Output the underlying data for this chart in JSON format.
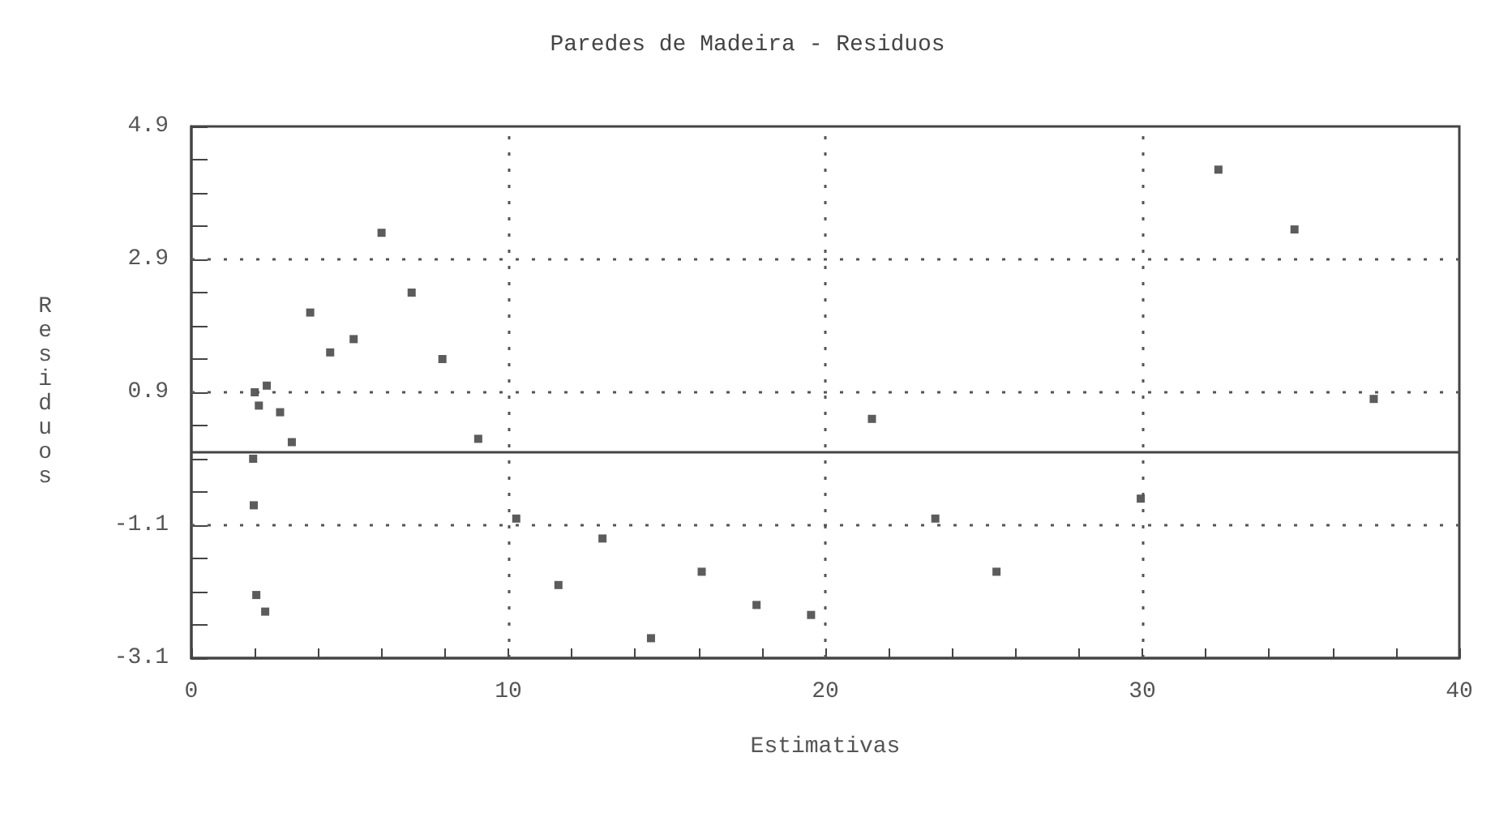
{
  "chart_data": {
    "type": "scatter",
    "title": "Paredes de Madeira - Residuos",
    "xlabel": "Estimativas",
    "ylabel": "Residuos",
    "x": [
      6.0,
      6.95,
      3.75,
      4.38,
      5.12,
      7.92,
      2.0,
      2.38,
      2.13,
      2.8,
      3.17,
      9.05,
      1.95,
      1.97,
      2.05,
      2.33,
      10.25,
      12.97,
      11.58,
      14.5,
      16.1,
      17.83,
      19.55,
      21.47,
      23.47,
      25.4,
      32.4,
      34.8,
      37.3,
      29.95
    ],
    "values": [
      3.3,
      2.4,
      2.1,
      1.5,
      1.7,
      1.4,
      0.9,
      1.0,
      0.7,
      0.6,
      0.15,
      0.2,
      -0.1,
      -0.8,
      -2.15,
      -2.4,
      -1.0,
      -1.3,
      -2.0,
      -2.8,
      -1.8,
      -2.3,
      -2.45,
      0.5,
      -1.0,
      -1.8,
      4.25,
      3.35,
      0.8,
      -0.7
    ],
    "color": "#333333",
    "marker": "square",
    "xlim": [
      0,
      40
    ],
    "xticks": [
      0,
      {
        "value": 2,
        "label": null
      },
      {
        "value": 4,
        "label": null
      },
      {
        "value": 6,
        "label": null
      },
      {
        "value": 8,
        "label": null
      },
      10,
      {
        "value": 12,
        "label": null
      },
      {
        "value": 14,
        "label": null
      },
      {
        "value": 16,
        "label": null
      },
      {
        "value": 18,
        "label": null
      },
      20,
      {
        "value": 22,
        "label": null
      },
      {
        "value": 24,
        "label": null
      },
      {
        "value": 26,
        "label": null
      },
      {
        "value": 28,
        "label": null
      },
      30,
      {
        "value": 32,
        "label": null
      },
      {
        "value": 34,
        "label": null
      },
      {
        "value": 36,
        "label": null
      },
      {
        "value": 38,
        "label": null
      },
      40
    ],
    "ylim": [
      -3.1,
      4.9
    ],
    "yticks": [
      -3.1,
      {
        "value": -2.6,
        "label": null
      },
      {
        "value": -2.1,
        "label": null
      },
      {
        "value": -1.6,
        "label": null
      },
      -1.1,
      {
        "value": -0.6,
        "label": null
      },
      {
        "value": -0.1,
        "label": null
      },
      {
        "value": 0.4,
        "label": null
      },
      0.9,
      {
        "value": 1.4,
        "label": null
      },
      {
        "value": 1.9,
        "label": null
      },
      {
        "value": 2.4,
        "label": null
      },
      2.9,
      {
        "value": 3.4,
        "label": null
      },
      {
        "value": 3.9,
        "label": null
      },
      {
        "value": 4.4,
        "label": null
      },
      4.9
    ],
    "grid": true,
    "ref_lines": [
      {
        "axis": "y",
        "value": 0,
        "line_style": "solid",
        "color": "#444444"
      }
    ]
  }
}
